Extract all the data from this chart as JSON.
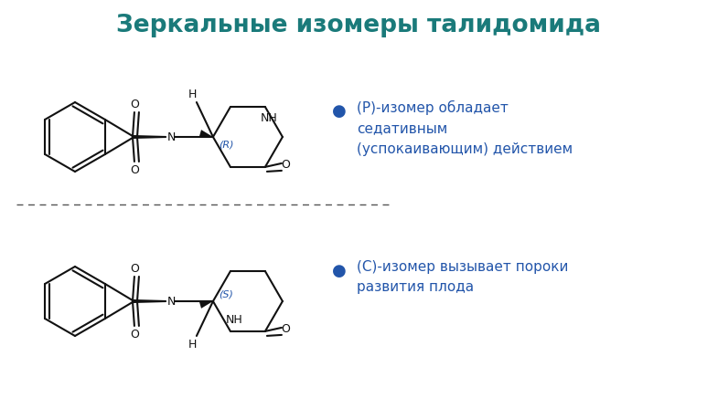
{
  "title": "Зеркальные изомеры талидомида",
  "title_color": "#1a7a7a",
  "title_fontsize": 19,
  "background_color": "#ffffff",
  "text_color_blue": "#2255aa",
  "bullet_color": "#2255aa",
  "bond_color": "#111111",
  "text_r": "(Р)-изомер обладает\nседативным\n(успокаивающим) действием",
  "text_s": "(С)-изомер вызывает пороки\nразвития плода"
}
